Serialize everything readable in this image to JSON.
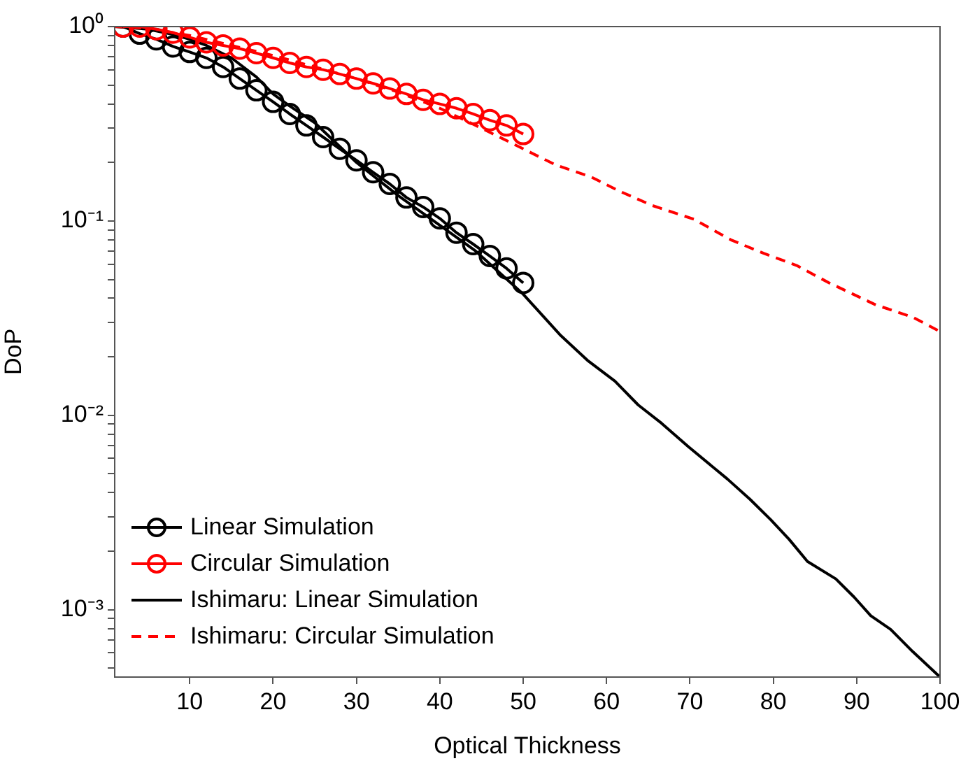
{
  "chart_data": {
    "type": "line",
    "xlabel": "Optical Thickness",
    "ylabel": "DoP",
    "log": "y",
    "grid": false,
    "legend": "bottom left",
    "xlim": [
      1,
      100
    ],
    "xticks": [
      10,
      20,
      30,
      40,
      50,
      60,
      70,
      80,
      90,
      100
    ],
    "ylim": [
      0.00045,
      1
    ],
    "yticks": [
      {
        "value": 0.0005,
        "label": null
      },
      {
        "value": 0.0006,
        "label": null
      },
      {
        "value": 0.0007,
        "label": null
      },
      {
        "value": 0.0008,
        "label": null
      },
      {
        "value": 0.0009,
        "label": null
      },
      {
        "value": 0.001,
        "label": "10⁻³"
      },
      {
        "value": 0.002,
        "label": null
      },
      {
        "value": 0.003,
        "label": null
      },
      {
        "value": 0.004,
        "label": null
      },
      {
        "value": 0.005,
        "label": null
      },
      {
        "value": 0.006,
        "label": null
      },
      {
        "value": 0.007,
        "label": null
      },
      {
        "value": 0.008,
        "label": null
      },
      {
        "value": 0.009,
        "label": null
      },
      {
        "value": 0.01,
        "label": "10⁻²"
      },
      {
        "value": 0.02,
        "label": null
      },
      {
        "value": 0.03,
        "label": null
      },
      {
        "value": 0.04,
        "label": null
      },
      {
        "value": 0.05,
        "label": null
      },
      {
        "value": 0.06,
        "label": null
      },
      {
        "value": 0.07,
        "label": null
      },
      {
        "value": 0.08,
        "label": null
      },
      {
        "value": 0.09,
        "label": null
      },
      {
        "value": 0.1,
        "label": "10⁻¹"
      },
      {
        "value": 0.2,
        "label": null
      },
      {
        "value": 0.3,
        "label": null
      },
      {
        "value": 0.4,
        "label": null
      },
      {
        "value": 0.5,
        "label": null
      },
      {
        "value": 0.6,
        "label": null
      },
      {
        "value": 0.7,
        "label": null
      },
      {
        "value": 0.8,
        "label": null
      },
      {
        "value": 0.9,
        "label": null
      },
      {
        "value": 1,
        "label": "10⁰"
      }
    ],
    "series": [
      {
        "name": "Linear Simulation",
        "color": "#000000",
        "marker": "circle",
        "line_style": "solid",
        "x": [
          2,
          4,
          6,
          8,
          10,
          12,
          14,
          16,
          18,
          20,
          22,
          24,
          26,
          28,
          30,
          32,
          34,
          36,
          38,
          40,
          42,
          44,
          46,
          48,
          50
        ],
        "values": [
          1.0,
          0.92,
          0.86,
          0.79,
          0.74,
          0.69,
          0.62,
          0.54,
          0.47,
          0.41,
          0.355,
          0.31,
          0.27,
          0.235,
          0.205,
          0.178,
          0.155,
          0.132,
          0.118,
          0.103,
          0.087,
          0.076,
          0.066,
          0.057,
          0.048
        ]
      },
      {
        "name": "Circular Simulation",
        "color": "#ff0000",
        "marker": "circle",
        "line_style": "solid",
        "x": [
          2,
          4,
          6,
          8,
          10,
          12,
          14,
          16,
          18,
          20,
          22,
          24,
          26,
          28,
          30,
          32,
          34,
          36,
          38,
          40,
          42,
          44,
          46,
          48,
          50
        ],
        "values": [
          1.0,
          1.0,
          0.97,
          0.93,
          0.88,
          0.83,
          0.8,
          0.77,
          0.73,
          0.69,
          0.65,
          0.62,
          0.6,
          0.57,
          0.54,
          0.51,
          0.48,
          0.45,
          0.42,
          0.4,
          0.38,
          0.355,
          0.33,
          0.31,
          0.28
        ]
      },
      {
        "name": "Ishimaru: Linear Simulation",
        "color": "#000000",
        "marker": "none",
        "line_style": "solid",
        "x": [
          1,
          5,
          8,
          10,
          12,
          15,
          18,
          20,
          22,
          25,
          30,
          35,
          40,
          44.3,
          50,
          54.4,
          57.7,
          61,
          63.8,
          66.6,
          69.8,
          74.5,
          77.2,
          79.7,
          81.9,
          84.1,
          87.5,
          89.7,
          91.7,
          94.1,
          96.7,
          100
        ],
        "values": [
          1.0,
          0.97,
          0.91,
          0.86,
          0.8,
          0.69,
          0.55,
          0.45,
          0.39,
          0.32,
          0.2,
          0.135,
          0.095,
          0.07,
          0.042,
          0.026,
          0.0192,
          0.015,
          0.0113,
          0.0091,
          0.0069,
          0.0047,
          0.0037,
          0.0029,
          0.0023,
          0.00177,
          0.00144,
          0.00116,
          0.00093,
          0.00079,
          0.00061,
          0.00045
        ]
      },
      {
        "name": "Ishimaru: Circular Simulation",
        "color": "#ff0000",
        "marker": "none",
        "line_style": "dashed",
        "x": [
          1,
          5,
          10,
          15,
          20,
          25,
          30,
          35,
          40,
          45,
          50,
          53.8,
          58.2,
          61.6,
          65.5,
          70.5,
          74.9,
          78.9,
          82.8,
          86.7,
          92.3,
          96.7,
          100
        ],
        "values": [
          1.0,
          0.98,
          0.9,
          0.8,
          0.71,
          0.62,
          0.54,
          0.46,
          0.38,
          0.3,
          0.235,
          0.195,
          0.168,
          0.142,
          0.12,
          0.102,
          0.08,
          0.068,
          0.059,
          0.048,
          0.037,
          0.032,
          0.027
        ]
      }
    ]
  }
}
